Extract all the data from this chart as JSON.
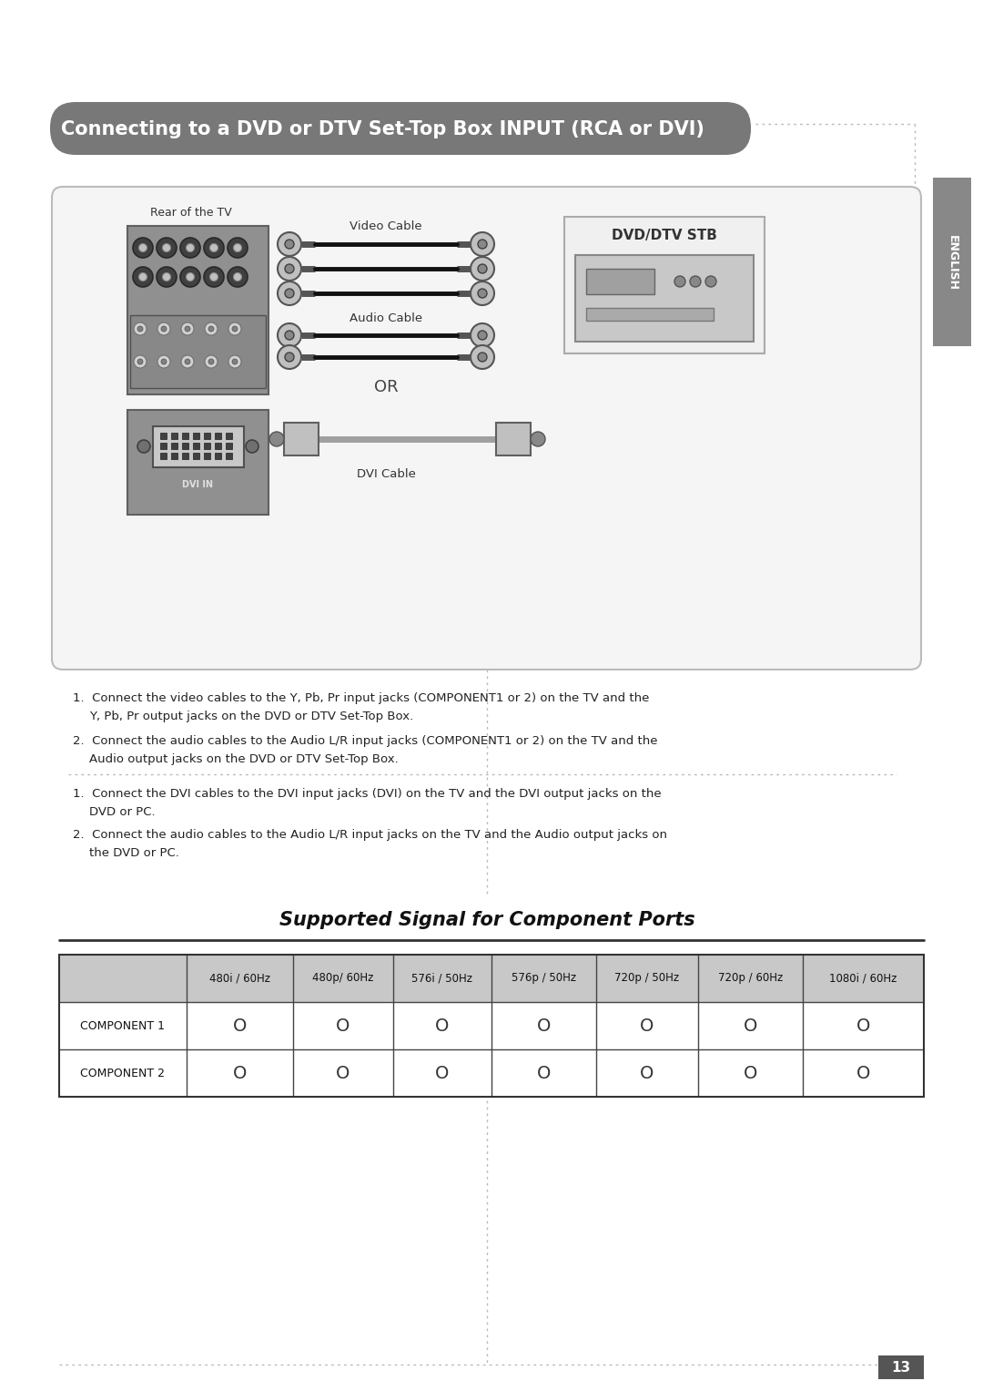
{
  "title": "Connecting to a DVD or DTV Set-Top Box INPUT (RCA or DVI)",
  "bg_color": "#ffffff",
  "header_bg": "#787878",
  "header_text_color": "#ffffff",
  "box_bg": "#f5f5f5",
  "box_border": "#bbbbbb",
  "table_header_bg": "#c8c8c8",
  "table_border": "#555555",
  "section_title": "Supported Signal for Component Ports",
  "table_columns": [
    "",
    "480i / 60Hz",
    "480p/ 60Hz",
    "576i / 50Hz",
    "576p / 50Hz",
    "720p / 50Hz",
    "720p / 60Hz",
    "1080i / 60Hz"
  ],
  "table_rows": [
    [
      "COMPONENT 1",
      "O",
      "O",
      "O",
      "O",
      "O",
      "O",
      "O"
    ],
    [
      "COMPONENT 2",
      "O",
      "O",
      "O",
      "O",
      "O",
      "O",
      "O"
    ]
  ],
  "rear_tv_label": "Rear of the TV",
  "dvd_label": "DVD/DTV STB",
  "video_cable_label": "Video Cable",
  "audio_cable_label": "Audio Cable",
  "or_label": "OR",
  "dvi_cable_label": "DVI Cable",
  "english_label": "ENGLISH",
  "page_number": "13",
  "rca_text1a": "1.  Connect the video cables to the Y, Pb, Pr input jacks (COMPONENT1 or 2) on the TV and the",
  "rca_text1b": "Y, Pb, Pr output jacks on the DVD or DTV Set-Top Box.",
  "rca_text2a": "2.  Connect the audio cables to the Audio L/R input jacks (COMPONENT1 or 2) on the TV and the",
  "rca_text2b": "Audio output jacks on the DVD or DTV Set-Top Box.",
  "dvi_text1a": "1.  Connect the DVI cables to the DVI input jacks (DVI) on the TV and the DVI output jacks on the",
  "dvi_text1b": "DVD or PC.",
  "dvi_text2a": "2.  Connect the audio cables to the Audio L/R input jacks on the TV and the Audio output jacks on",
  "dvi_text2b": "the DVD or PC."
}
